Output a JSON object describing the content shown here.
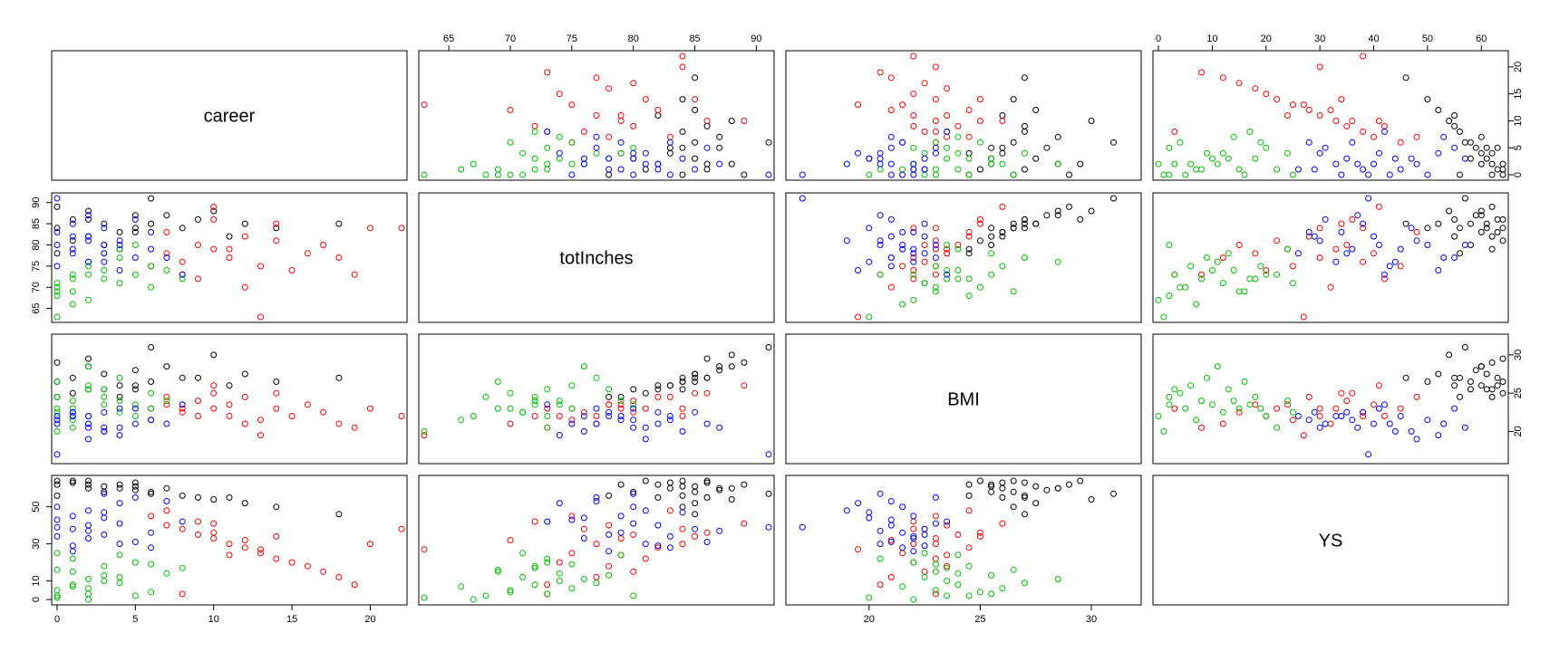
{
  "chart_data": {
    "type": "scatter",
    "subtype": "pairs-matrix",
    "variables": [
      {
        "key": "career",
        "label": "career",
        "range": [
          0,
          22
        ]
      },
      {
        "key": "totInches",
        "label": "totInches",
        "range": [
          63,
          91
        ]
      },
      {
        "key": "BMI",
        "label": "BMI",
        "range": [
          16.5,
          32
        ]
      },
      {
        "key": "YS",
        "label": "YS",
        "range": [
          0,
          64
        ]
      }
    ],
    "ticks": {
      "career": {
        "values": [
          0,
          5,
          10,
          15,
          20
        ],
        "labels": [
          "0",
          "5",
          "10",
          "15",
          "20"
        ],
        "shown_on": "bottom"
      },
      "totInches": {
        "values": [
          65,
          70,
          75,
          80,
          85,
          90
        ],
        "labels": [
          "65",
          "70",
          "75",
          "80",
          "85",
          "90"
        ],
        "shown_on": "top,left"
      },
      "BMI": {
        "values": [
          20,
          25,
          30
        ],
        "labels": [
          "20",
          "25",
          "30"
        ],
        "shown_on": "bottom,right"
      },
      "YS": {
        "values": [
          0,
          10,
          20,
          30,
          40,
          50,
          60
        ],
        "labels": [
          "0",
          "10",
          "20",
          "30",
          "40",
          "50",
          "60"
        ],
        "shown_on": "top,left"
      },
      "career_right": {
        "values": [
          0,
          5,
          10,
          15,
          20
        ],
        "labels": [
          "0",
          "5",
          "10",
          "15",
          "20"
        ]
      },
      "YS_left": {
        "values": [
          0,
          10,
          30,
          50
        ],
        "labels": [
          "0",
          "10",
          "30",
          "50"
        ]
      }
    },
    "series": [
      {
        "color": "#000000",
        "points": [
          [
            0,
            84,
            26.5,
            64
          ],
          [
            1,
            86,
            27.0,
            63
          ],
          [
            2,
            82,
            25.5,
            62
          ],
          [
            3,
            85,
            27.5,
            61
          ],
          [
            4,
            83,
            26.0,
            60
          ],
          [
            5,
            87,
            28.0,
            59
          ],
          [
            6,
            85,
            26.5,
            58
          ],
          [
            8,
            84,
            27.0,
            56
          ],
          [
            10,
            88,
            30.0,
            54
          ],
          [
            12,
            85,
            27.5,
            52
          ],
          [
            3,
            80,
            25.5,
            58
          ],
          [
            0,
            89,
            29.0,
            62
          ],
          [
            2,
            88,
            28.5,
            60
          ],
          [
            6,
            91,
            31.0,
            57
          ],
          [
            9,
            86,
            27.0,
            55
          ],
          [
            4,
            79,
            24.5,
            62
          ],
          [
            1,
            81,
            25.0,
            64
          ],
          [
            5,
            83,
            26.0,
            63
          ],
          [
            7,
            87,
            28.5,
            60
          ],
          [
            11,
            82,
            26.0,
            55
          ],
          [
            18,
            85,
            27.0,
            46
          ],
          [
            14,
            84,
            26.5,
            50
          ],
          [
            0,
            78,
            24.5,
            56
          ],
          [
            2,
            86,
            29.5,
            64
          ],
          [
            5,
            84,
            25.5,
            61
          ]
        ]
      },
      {
        "color": "#ff0000",
        "points": [
          [
            7,
            78,
            23.5,
            40
          ],
          [
            8,
            76,
            22.5,
            38
          ],
          [
            9,
            80,
            24.0,
            35
          ],
          [
            10,
            79,
            23.0,
            33
          ],
          [
            11,
            77,
            22.0,
            30
          ],
          [
            12,
            82,
            24.5,
            28
          ],
          [
            13,
            75,
            21.5,
            25
          ],
          [
            14,
            81,
            23.0,
            22
          ],
          [
            15,
            74,
            22.0,
            20
          ],
          [
            16,
            78,
            23.5,
            18
          ],
          [
            17,
            80,
            22.5,
            15
          ],
          [
            18,
            77,
            21.0,
            12
          ],
          [
            19,
            73,
            20.5,
            8
          ],
          [
            20,
            84,
            23.0,
            30
          ],
          [
            22,
            84,
            22.0,
            38
          ],
          [
            6,
            75,
            23.0,
            45
          ],
          [
            9,
            72,
            22.0,
            42
          ],
          [
            10,
            86,
            25.0,
            36
          ],
          [
            12,
            70,
            21.0,
            32
          ],
          [
            13,
            63,
            19.5,
            27
          ],
          [
            7,
            83,
            24.5,
            48
          ],
          [
            11,
            79,
            23.5,
            24
          ],
          [
            14,
            85,
            25.0,
            34
          ],
          [
            8,
            73,
            23.0,
            3
          ],
          [
            10,
            89,
            26.0,
            41
          ]
        ]
      },
      {
        "color": "#00c000",
        "points": [
          [
            0,
            70,
            23.0,
            5
          ],
          [
            1,
            72,
            24.0,
            8
          ],
          [
            2,
            73,
            25.5,
            3
          ],
          [
            3,
            74,
            23.5,
            10
          ],
          [
            4,
            71,
            22.5,
            12
          ],
          [
            0,
            68,
            24.5,
            2
          ],
          [
            1,
            69,
            23.0,
            15
          ],
          [
            2,
            75,
            26.0,
            6
          ],
          [
            3,
            72,
            24.5,
            18
          ],
          [
            5,
            73,
            22.0,
            20
          ],
          [
            6,
            70,
            25.0,
            4
          ],
          [
            0,
            63,
            20.0,
            1
          ],
          [
            1,
            66,
            21.5,
            7
          ],
          [
            4,
            77,
            27.0,
            9
          ],
          [
            7,
            74,
            24.0,
            14
          ],
          [
            2,
            76,
            28.5,
            11
          ],
          [
            0,
            71,
            22.5,
            25
          ],
          [
            3,
            78,
            25.5,
            13
          ],
          [
            5,
            80,
            23.5,
            2
          ],
          [
            1,
            73,
            20.5,
            22
          ],
          [
            0,
            69,
            26.5,
            16
          ],
          [
            6,
            75,
            23.0,
            19
          ],
          [
            2,
            67,
            22.0,
            0
          ],
          [
            4,
            79,
            24.0,
            24
          ],
          [
            8,
            72,
            23.5,
            17
          ]
        ]
      },
      {
        "color": "#0000ff",
        "points": [
          [
            0,
            80,
            21.5,
            50
          ],
          [
            1,
            79,
            22.0,
            45
          ],
          [
            2,
            82,
            21.0,
            40
          ],
          [
            3,
            78,
            22.5,
            35
          ],
          [
            4,
            81,
            20.5,
            30
          ],
          [
            5,
            77,
            23.0,
            55
          ],
          [
            6,
            83,
            21.5,
            28
          ],
          [
            2,
            76,
            22.0,
            33
          ],
          [
            3,
            84,
            20.0,
            47
          ],
          [
            0,
            75,
            21.0,
            43
          ],
          [
            1,
            85,
            22.5,
            38
          ],
          [
            4,
            74,
            19.5,
            52
          ],
          [
            5,
            86,
            21.0,
            31
          ],
          [
            3,
            80,
            20.5,
            57
          ],
          [
            1,
            78,
            22.0,
            26
          ],
          [
            0,
            91,
            17.0,
            39
          ],
          [
            8,
            73,
            23.5,
            42
          ],
          [
            2,
            81,
            19.0,
            48
          ],
          [
            6,
            79,
            21.5,
            36
          ],
          [
            1,
            82,
            22.5,
            29
          ],
          [
            7,
            77,
            21.0,
            53
          ],
          [
            3,
            76,
            20.0,
            44
          ],
          [
            0,
            83,
            22.0,
            34
          ],
          [
            4,
            80,
            23.0,
            41
          ],
          [
            2,
            87,
            20.5,
            37
          ]
        ]
      }
    ]
  }
}
